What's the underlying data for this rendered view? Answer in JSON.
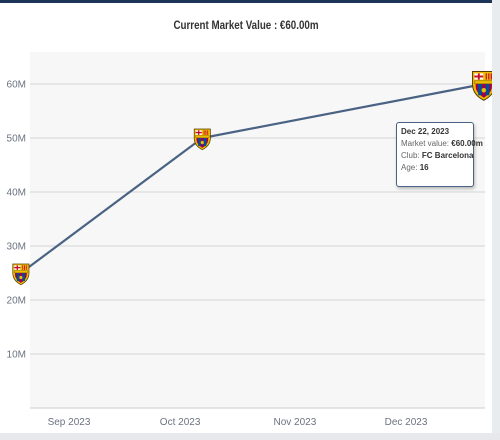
{
  "title": "Current Market Value : €60.00m",
  "chart_data": {
    "type": "line",
    "series": [
      {
        "points": [
          {
            "x": "2023-08-19",
            "y": 25,
            "icon": "fc-barcelona-crest-icon"
          },
          {
            "x": "2023-10-07",
            "y": 50,
            "icon": "fc-barcelona-crest-icon"
          },
          {
            "x": "2023-12-22",
            "y": 60,
            "icon": "fc-barcelona-crest-icon"
          }
        ],
        "color": "#4a6283"
      }
    ],
    "x_ticks": [
      {
        "date": "2023-09-01",
        "label": "Sep 2023"
      },
      {
        "date": "2023-10-01",
        "label": "Oct 2023"
      },
      {
        "date": "2023-11-01",
        "label": "Nov 2023"
      },
      {
        "date": "2023-12-01",
        "label": "Dec 2023"
      }
    ],
    "y_ticks": [
      {
        "value": 10,
        "label": "10M"
      },
      {
        "value": 20,
        "label": "20M"
      },
      {
        "value": 30,
        "label": "30M"
      },
      {
        "value": 40,
        "label": "40M"
      },
      {
        "value": 50,
        "label": "50M"
      },
      {
        "value": 60,
        "label": "60M"
      }
    ],
    "ylim": [
      0,
      60
    ],
    "grid": true
  },
  "tooltip": {
    "date": "Dec 22, 2023",
    "market_value_label": "Market value:",
    "market_value": "€60.00m",
    "club_label": "Club:",
    "club": "FC Barcelona",
    "age_label": "Age:",
    "age": "16"
  },
  "colors": {
    "line": "#4a6283",
    "plot_background": "#f7f7f7",
    "grid": "#d6d6d6",
    "crest_red": "#a50044",
    "crest_blue": "#004d98",
    "crest_gold": "#edbb00"
  }
}
